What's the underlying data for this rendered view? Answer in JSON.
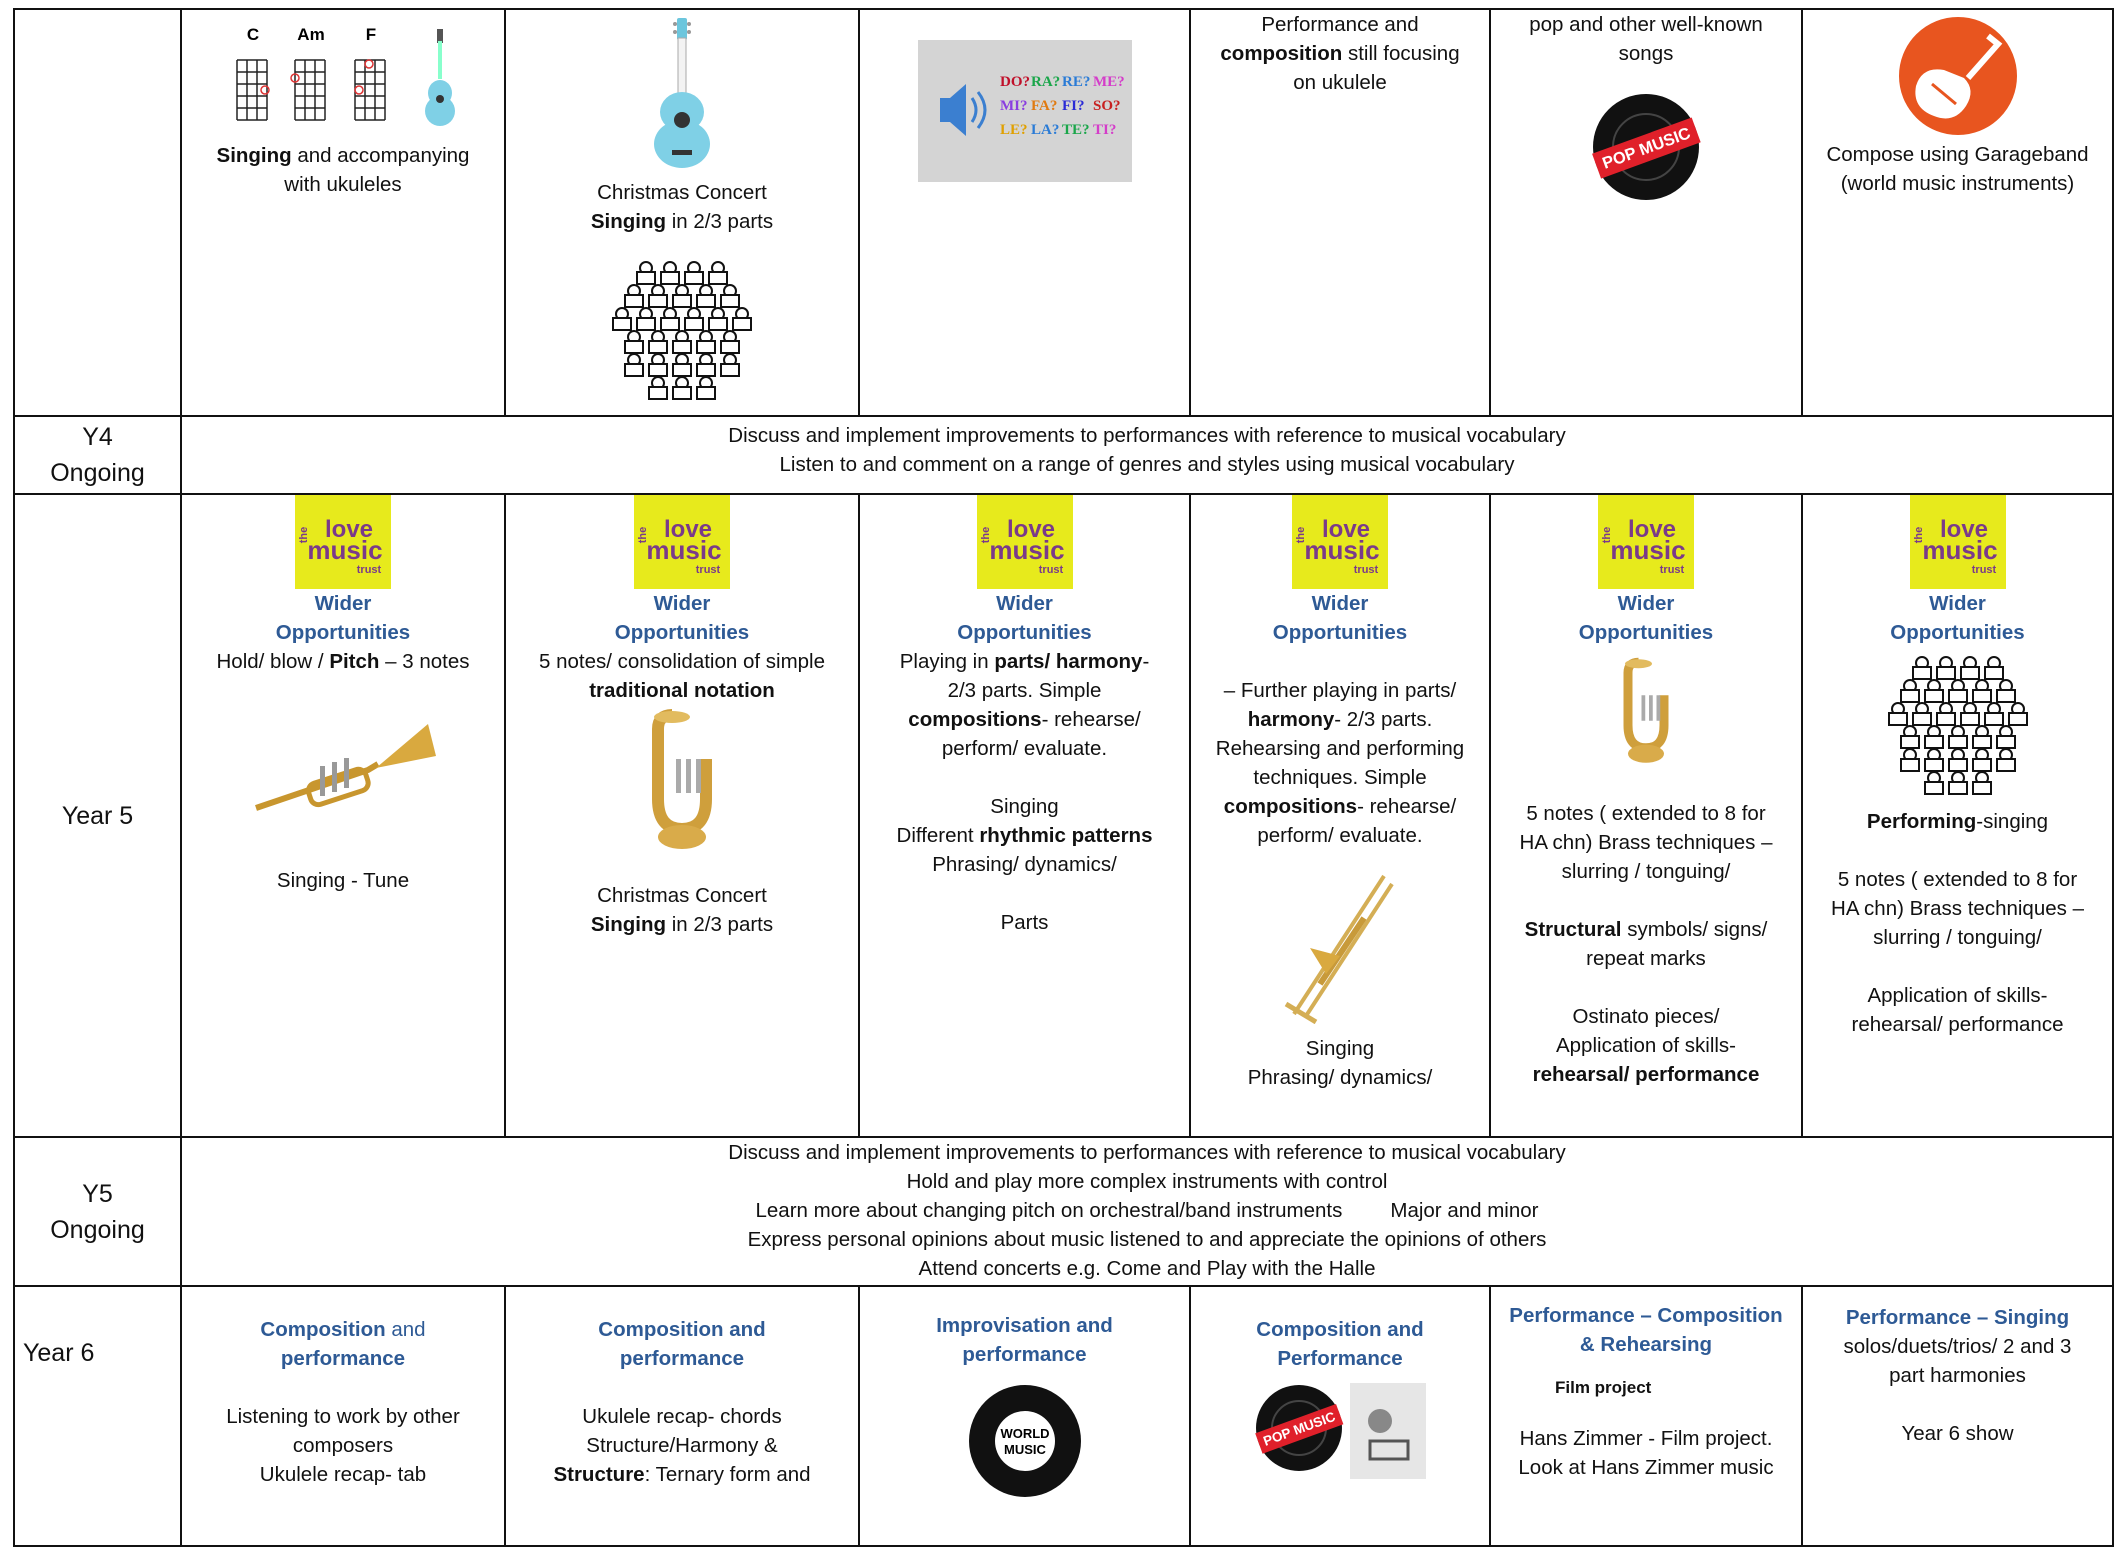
{
  "rows": [
    {
      "cells": [
        {
          "chords": [
            "C",
            "Am",
            "F"
          ],
          "text": [
            [
              [
                "Singing",
                " and accompanying"
              ],
              [
                "with ukuleles"
              ]
            ]
          ]
        },
        {
          "text": [
            [
              [
                "Christmas Concert"
              ],
              [
                "Singing",
                " in 2/3 parts"
              ]
            ]
          ]
        },
        {
          "solfege": [
            [
              "DO?",
              "RA?",
              "RE?",
              "ME?"
            ],
            [
              "MI?",
              "FA?",
              "FI?",
              "SO?"
            ],
            [
              "LE?",
              "LA?",
              "TE?",
              "TI?"
            ]
          ]
        },
        {
          "text": [
            [
              [
                "Performance and"
              ],
              [
                "composition",
                " still focusing"
              ],
              [
                "on ukulele"
              ]
            ]
          ]
        },
        {
          "text": [
            [
              [
                "pop and other well-known"
              ],
              [
                "songs"
              ]
            ]
          ]
        },
        {
          "text": [
            [
              [
                "Compose using Garageband"
              ],
              [
                "(world music instruments)"
              ]
            ]
          ]
        }
      ]
    },
    {
      "label": [
        "Y4",
        "Ongoing"
      ],
      "lines": [
        [
          "Discuss and implement improvements to performances with reference to musical vocabulary"
        ],
        [
          "Listen to and comment on a range of genres and styles using musical vocabulary"
        ]
      ]
    },
    {
      "label": "Year 5",
      "cells": [
        {
          "heading": [
            [
              "Wider"
            ],
            [
              "Opportunities"
            ]
          ],
          "text": [
            [
              [
                "Hold/ blow / ",
                "Pitch",
                " – 3 notes"
              ]
            ],
            [
              [
                "Singing - Tune"
              ]
            ]
          ]
        },
        {
          "heading": [
            [
              "Wider"
            ],
            [
              "Opportunities"
            ]
          ],
          "text": [
            [
              [
                "5 notes/ consolidation of simple"
              ],
              [
                "traditional notation"
              ]
            ],
            [
              [
                "Christmas Concert"
              ],
              [
                "Singing",
                " in 2/3 parts"
              ]
            ]
          ]
        },
        {
          "heading": [
            [
              "Wider"
            ],
            [
              "Opportunities"
            ]
          ],
          "text": [
            [
              [
                "Playing in ",
                "parts/ harmony",
                "-"
              ],
              [
                "2/3 parts. Simple"
              ],
              [
                "compositions",
                "- rehearse/"
              ],
              [
                "perform/ evaluate."
              ]
            ],
            [
              [
                "Singing"
              ],
              [
                "Different ",
                "rhythmic patterns"
              ],
              [
                "Phrasing/ dynamics/"
              ]
            ],
            [
              [
                "Parts"
              ]
            ]
          ]
        },
        {
          "heading": [
            [
              "Wider"
            ],
            [
              "Opportunities"
            ]
          ],
          "text": [
            [
              [
                "– Further playing in parts/"
              ],
              [
                "harmony",
                "- 2/3 parts."
              ],
              [
                "Rehearsing and performing"
              ],
              [
                "techniques. Simple"
              ],
              [
                "compositions",
                "- rehearse/"
              ],
              [
                "perform/ evaluate."
              ]
            ],
            [
              [
                "Singing"
              ],
              [
                "Phrasing/ dynamics/"
              ]
            ]
          ]
        },
        {
          "heading": [
            [
              "Wider"
            ],
            [
              "Opportunities"
            ]
          ],
          "text": [
            [
              [
                "5 notes ( extended to 8 for"
              ],
              [
                "HA chn) Brass techniques –"
              ],
              [
                "slurring / tonguing/"
              ]
            ],
            [
              [
                "Structural",
                " symbols/ signs/"
              ],
              [
                "repeat marks"
              ]
            ],
            [
              [
                "Ostinato pieces/"
              ],
              [
                "Application of skills-"
              ],
              [
                "rehearsal/ performance"
              ]
            ]
          ]
        },
        {
          "heading": [
            [
              "Wider"
            ],
            [
              "Opportunities"
            ]
          ],
          "text": [
            [
              [
                "Performing",
                "-singing"
              ]
            ],
            [
              [
                "5 notes ( extended to 8 for"
              ],
              [
                "HA chn) Brass techniques –"
              ],
              [
                "slurring / tonguing/"
              ]
            ],
            [
              [
                "Application of skills-"
              ],
              [
                "rehearsal/ performance"
              ]
            ]
          ]
        }
      ]
    },
    {
      "label": [
        "Y5",
        "Ongoing"
      ],
      "lines": [
        [
          "Discuss and implement improvements to performances with reference to musical vocabulary"
        ],
        [
          "Hold and play more complex instruments with control"
        ],
        [
          "Learn more about changing pitch on orchestral/band instruments",
          "Major and minor"
        ],
        [
          "Express personal opinions about music listened to and appreciate the opinions of others"
        ],
        [
          "Attend concerts e.g. Come and Play with the Halle"
        ]
      ]
    },
    {
      "label": "Year 6",
      "cells": [
        {
          "heading": [
            [
              "Composition",
              " and"
            ],
            [
              "performance"
            ]
          ],
          "text": [
            [
              [
                "Listening to work by other"
              ],
              [
                "composers"
              ],
              [
                "Ukulele recap- tab"
              ]
            ]
          ]
        },
        {
          "heading": [
            [
              "Composition and"
            ],
            [
              "performance"
            ]
          ],
          "text": [
            [
              [
                "Ukulele recap- chords"
              ],
              [
                "Structure/Harmony &"
              ],
              [
                "Structure",
                ": Ternary form and"
              ]
            ]
          ]
        },
        {
          "heading": [
            [
              "Improvisation and"
            ],
            [
              "performance"
            ]
          ]
        },
        {
          "heading": [
            [
              "Composition and"
            ],
            [
              "Performance"
            ]
          ]
        },
        {
          "heading": [
            [
              "Performance – Composition"
            ],
            [
              "& Rehearsing"
            ]
          ],
          "note": "Film project",
          "text": [
            [
              [
                "Hans Zimmer - Film project."
              ],
              [
                "Look at Hans Zimmer music"
              ]
            ]
          ]
        },
        {
          "heading": [
            [
              "Performance –  Singing"
            ]
          ],
          "text": [
            [
              [
                "solos/duets/trios/ 2 and 3"
              ],
              [
                "part harmonies"
              ]
            ],
            [
              [
                "Year 6 show"
              ]
            ]
          ]
        }
      ]
    }
  ],
  "logos": {
    "love_music": [
      "the",
      "love",
      "music",
      "trust"
    ],
    "pop": "POP MUSIC",
    "world": [
      "WORLD",
      "MUSIC"
    ]
  }
}
